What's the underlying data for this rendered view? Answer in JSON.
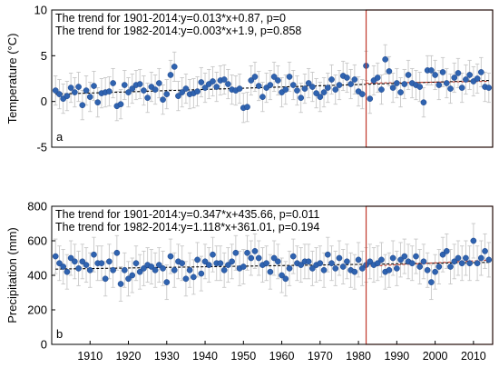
{
  "chart_data": [
    {
      "type": "scatter",
      "panel_label": "a",
      "ylabel": "Temperature (°C)",
      "ylim": [
        -5,
        10
      ],
      "yticks": [
        -5,
        0,
        5,
        10
      ],
      "xlim": [
        1900,
        2015
      ],
      "grid": false,
      "annotations": [
        "The trend for 1901-2014:y=0.013*x+0.87, p=0",
        "The trend for 1982-2014:y=0.003*x+1.9, p=0.858"
      ],
      "highlight": {
        "x0": 1982,
        "x1": 2015,
        "color": "#c0392b"
      },
      "point_color": "#2f63b0",
      "error_color": "#c8c8c8",
      "trend1": {
        "x0": 1901,
        "x1": 2014,
        "y0": 0.8,
        "y1": 2.3,
        "color": "#000000"
      },
      "trend2": {
        "x0": 1982,
        "x1": 2014,
        "y0": 2.0,
        "y1": 2.2,
        "color": "#c0392b"
      },
      "error": 1.6,
      "x_start": 1901,
      "values": [
        1.2,
        0.8,
        0.3,
        0.6,
        1.5,
        1.0,
        1.6,
        -0.4,
        1.2,
        0.5,
        1.7,
        -0.1,
        0.9,
        1.0,
        1.1,
        2.0,
        -0.5,
        -0.3,
        1.8,
        1.0,
        1.4,
        1.8,
        1.9,
        1.2,
        0.4,
        1.6,
        1.3,
        2.0,
        0.2,
        0.8,
        2.9,
        3.8,
        0.6,
        1.0,
        1.4,
        0.8,
        0.9,
        1.1,
        2.1,
        1.5,
        1.9,
        2.2,
        1.6,
        2.3,
        2.4,
        1.9,
        1.3,
        1.2,
        1.4,
        -0.7,
        -0.6,
        2.3,
        2.7,
        1.7,
        0.5,
        1.5,
        1.8,
        2.7,
        2.3,
        1.0,
        1.3,
        2.7,
        1.8,
        1.2,
        0.4,
        1.4,
        2.0,
        1.6,
        0.9,
        0.5,
        1.0,
        1.5,
        2.4,
        1.3,
        1.8,
        2.8,
        2.6,
        1.9,
        2.4,
        1.1,
        0.8,
        3.9,
        0.3,
        2.3,
        2.6,
        1.3,
        4.6,
        3.3,
        1.5,
        2.0,
        1.0,
        1.9,
        2.9,
        2.0,
        1.8,
        1.6,
        -0.1,
        3.4,
        3.4,
        2.9,
        1.8,
        3.2,
        2.0,
        1.4,
        2.6,
        3.1,
        1.5,
        2.4,
        2.9,
        2.2,
        2.5,
        3.2,
        1.6,
        1.5
      ]
    },
    {
      "type": "scatter",
      "panel_label": "b",
      "ylabel": "Precipitation (mm)",
      "ylim": [
        0,
        800
      ],
      "yticks": [
        0,
        200,
        400,
        600,
        800
      ],
      "xlim": [
        1900,
        2015
      ],
      "xticks": [
        1910,
        1920,
        1930,
        1940,
        1950,
        1960,
        1970,
        1980,
        1990,
        2000,
        2010
      ],
      "grid": false,
      "annotations": [
        "The trend for 1901-2014:y=0.347*x+435.66, p=0.011",
        "The trend for 1982-2014:y=1.118*x+361.01, p=0.194"
      ],
      "highlight": {
        "x0": 1982,
        "x1": 2015,
        "color": "#c0392b"
      },
      "point_color": "#2f63b0",
      "error_color": "#c8c8c8",
      "trend1": {
        "x0": 1901,
        "x1": 2014,
        "y0": 436,
        "y1": 475,
        "color": "#000000"
      },
      "trend2": {
        "x0": 1982,
        "x1": 2014,
        "y0": 452,
        "y1": 488,
        "color": "#c0392b"
      },
      "error": 100,
      "x_start": 1901,
      "values": [
        510,
        470,
        450,
        420,
        500,
        480,
        440,
        480,
        460,
        430,
        520,
        470,
        470,
        380,
        480,
        430,
        530,
        350,
        430,
        380,
        400,
        470,
        420,
        440,
        460,
        450,
        430,
        460,
        440,
        360,
        510,
        430,
        480,
        470,
        380,
        430,
        390,
        490,
        410,
        480,
        460,
        520,
        470,
        470,
        430,
        460,
        480,
        530,
        440,
        450,
        530,
        500,
        540,
        500,
        460,
        470,
        420,
        500,
        480,
        400,
        380,
        440,
        510,
        470,
        460,
        480,
        480,
        440,
        460,
        470,
        430,
        520,
        470,
        440,
        500,
        450,
        480,
        430,
        420,
        490,
        440,
        460,
        480,
        460,
        470,
        490,
        420,
        430,
        500,
        440,
        490,
        510,
        480,
        470,
        510,
        450,
        480,
        430,
        360,
        420,
        450,
        520,
        540,
        450,
        480,
        500,
        470,
        500,
        470,
        600,
        470,
        500,
        540,
        490
      ]
    }
  ]
}
